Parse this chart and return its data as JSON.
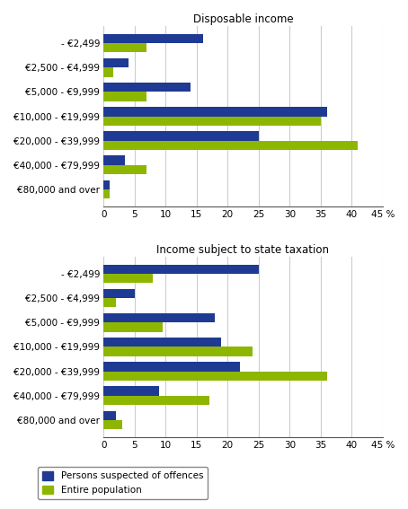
{
  "categories": [
    "- €2,499",
    "€2,500 - €4,999",
    "€5,000 - €9,999",
    "€10,000 - €19,999",
    "€20,000 - €39,999",
    "€40,000 - €79,999",
    "€80,000 and over"
  ],
  "disposable": {
    "suspected": [
      16,
      4,
      14,
      36,
      25,
      3.5,
      1
    ],
    "population": [
      7,
      1.5,
      7,
      35,
      41,
      7,
      1
    ]
  },
  "state_taxation": {
    "suspected": [
      25,
      5,
      18,
      19,
      22,
      9,
      2
    ],
    "population": [
      8,
      2,
      9.5,
      24,
      36,
      17,
      3
    ]
  },
  "color_suspected": "#1F3A93",
  "color_population": "#8DB600",
  "title1": "Disposable income",
  "title2": "Income subject to state taxation",
  "xticks": [
    0,
    5,
    10,
    15,
    20,
    25,
    30,
    35,
    40,
    45
  ],
  "legend_suspected": "Persons suspected of offences",
  "legend_population": "Entire population",
  "bar_height": 0.38
}
